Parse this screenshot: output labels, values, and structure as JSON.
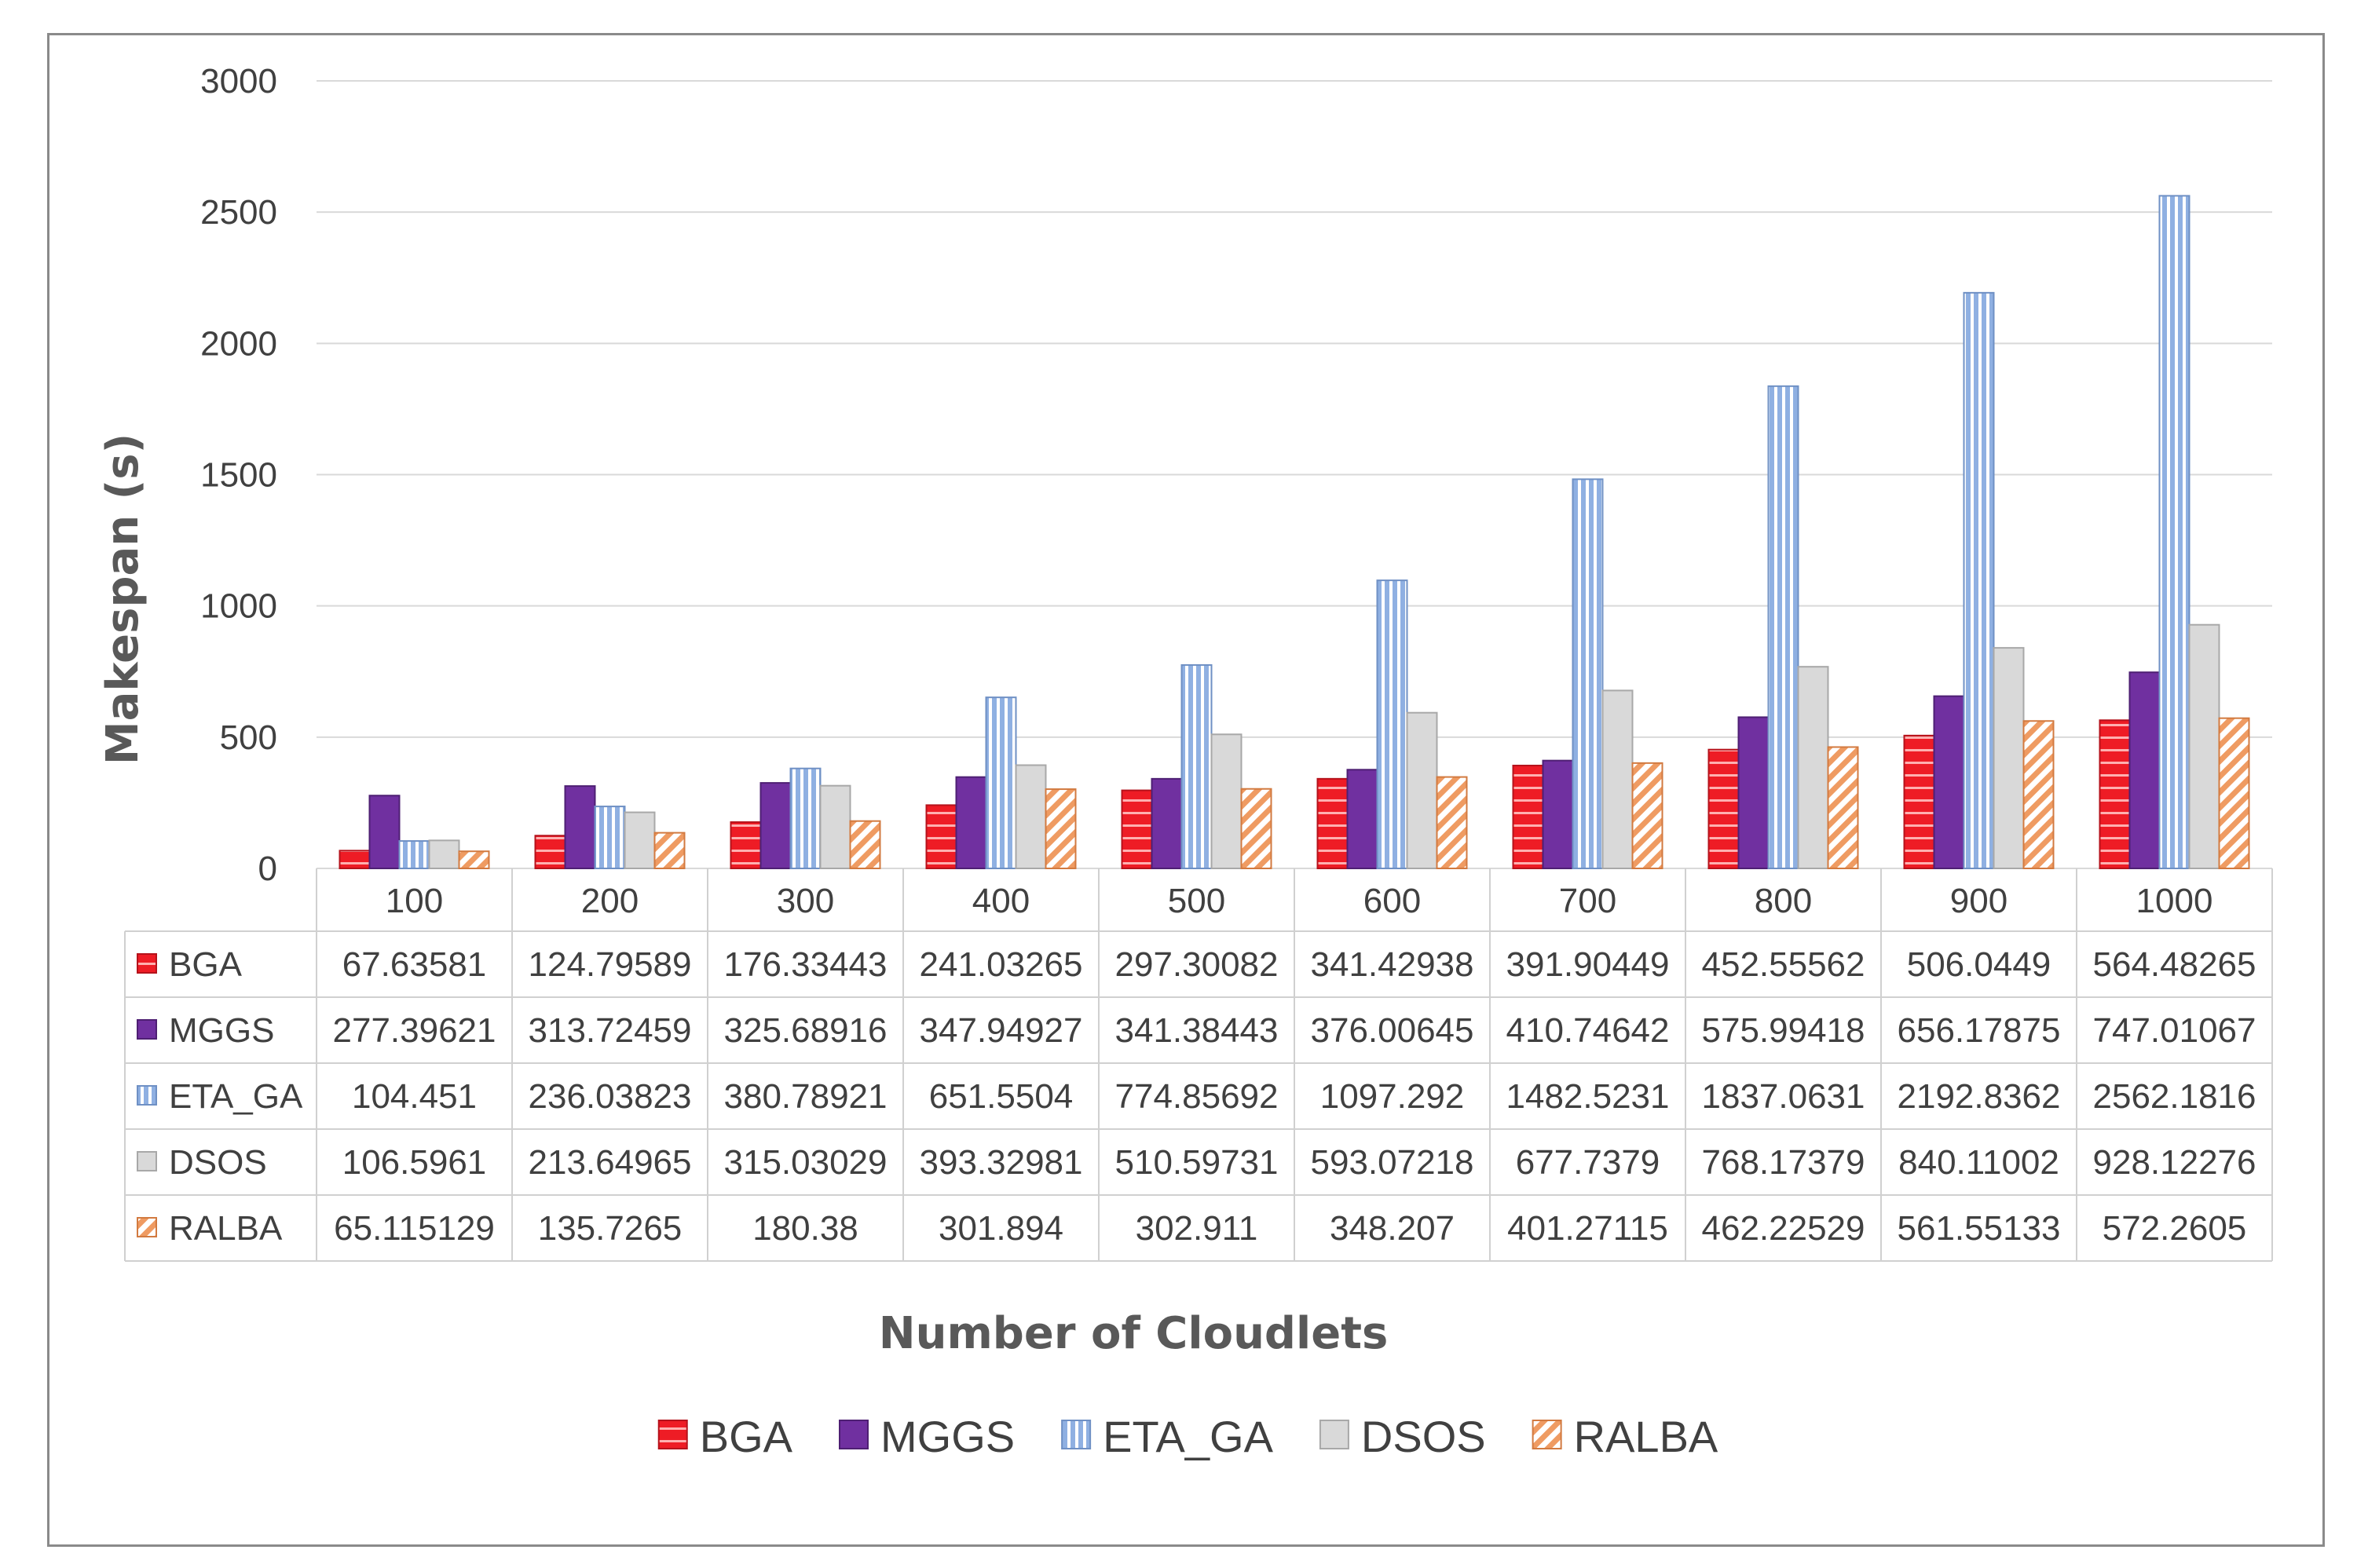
{
  "chart_data": {
    "type": "bar",
    "title": "",
    "xlabel": "Number of Cloudlets",
    "ylabel": "Makespan (s)",
    "ylim": [
      0,
      3000
    ],
    "yticks": [
      0,
      500,
      1000,
      1500,
      2000,
      2500,
      3000
    ],
    "grid": true,
    "legend_position": "bottom",
    "categories": [
      "100",
      "200",
      "300",
      "400",
      "500",
      "600",
      "700",
      "800",
      "900",
      "1000"
    ],
    "series": [
      {
        "name": "BGA",
        "color": "#ee1c25",
        "pattern": "horizontal-lines",
        "values": [
          67.63581,
          124.79589,
          176.33443,
          241.03265,
          297.30082,
          341.42938,
          391.90449,
          452.55562,
          506.0449,
          564.48265
        ],
        "labels": [
          "67.63581",
          "124.79589",
          "176.33443",
          "241.03265",
          "297.30082",
          "341.42938",
          "391.90449",
          "452.55562",
          "506.0449",
          "564.48265"
        ]
      },
      {
        "name": "MGGS",
        "color": "#7030a0",
        "pattern": "solid",
        "values": [
          277.39621,
          313.72459,
          325.68916,
          347.94927,
          341.38443,
          376.00645,
          410.74642,
          575.99418,
          656.17875,
          747.01067
        ],
        "labels": [
          "277.39621",
          "313.72459",
          "325.68916",
          "347.94927",
          "341.38443",
          "376.00645",
          "410.74642",
          "575.99418",
          "656.17875",
          "747.01067"
        ]
      },
      {
        "name": "ETA_GA",
        "color": "#a9c4ec",
        "pattern": "vertical-lines",
        "values": [
          104.451,
          236.03823,
          380.78921,
          651.5504,
          774.85692,
          1097.292,
          1482.5231,
          1837.0631,
          2192.8362,
          2562.1816
        ],
        "labels": [
          "104.451",
          "236.03823",
          "380.78921",
          "651.5504",
          "774.85692",
          "1097.292",
          "1482.5231",
          "1837.0631",
          "2192.8362",
          "2562.1816"
        ]
      },
      {
        "name": "DSOS",
        "color": "#d9d9d9",
        "pattern": "solid",
        "values": [
          106.5961,
          213.64965,
          315.03029,
          393.32981,
          510.59731,
          593.07218,
          677.7379,
          768.17379,
          840.11002,
          928.12276
        ],
        "labels": [
          "106.5961",
          "213.64965",
          "315.03029",
          "393.32981",
          "510.59731",
          "593.07218",
          "677.7379",
          "768.17379",
          "840.11002",
          "928.12276"
        ]
      },
      {
        "name": "RALBA",
        "color": "#f0a070",
        "pattern": "diagonal-lines",
        "values": [
          65.115129,
          135.7265,
          180.38,
          301.894,
          302.911,
          348.207,
          401.27115,
          462.22529,
          561.55133,
          572.2605
        ],
        "labels": [
          "65.115129",
          "135.7265",
          "180.38",
          "301.894",
          "302.911",
          "348.207",
          "401.27115",
          "462.22529",
          "561.55133",
          "572.2605"
        ]
      }
    ]
  }
}
